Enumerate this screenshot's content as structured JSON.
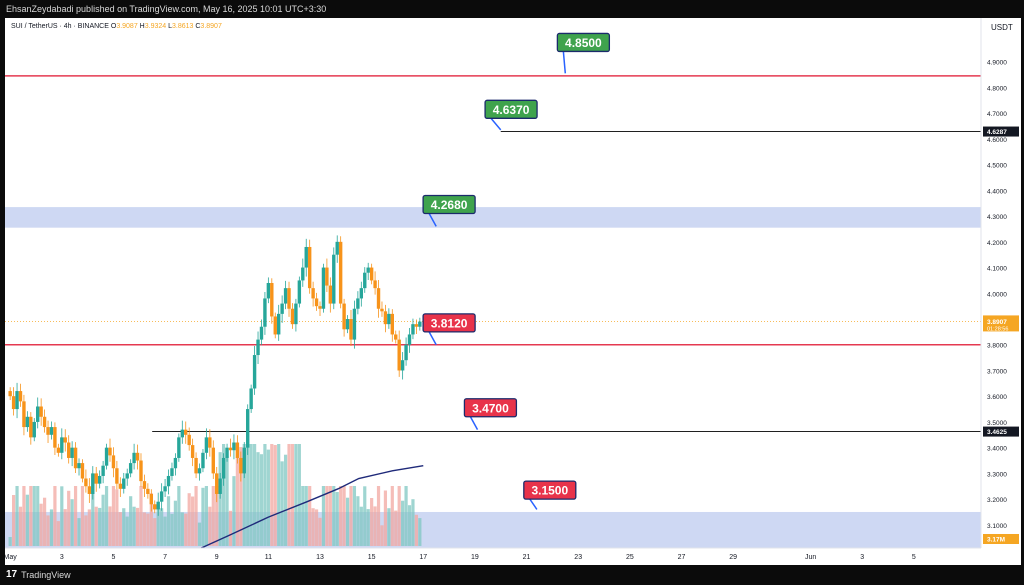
{
  "header": {
    "published_line": "EhsanZeydabadi published on TradingView.com, May 16, 2025 10:01 UTC+3:30"
  },
  "footer": {
    "logo_text": "TradingView",
    "logo_mark": "17"
  },
  "chart_data": {
    "type": "candlestick",
    "symbol_line": "SUI / TetherUS · 4h · BINANCE",
    "ohlc": {
      "o_label": "O",
      "o": "3.9087",
      "h_label": "H",
      "h": "3.9324",
      "l_label": "L",
      "l": "3.8613",
      "c_label": "C",
      "c": "3.8907"
    },
    "currency": "USDT",
    "ylim": [
      3.01,
      5.07
    ],
    "xlim": [
      -0.2,
      37.6
    ],
    "y_ticks": [
      "3.1000",
      "3.2000",
      "3.3000",
      "3.4000",
      "3.5000",
      "3.6000",
      "3.7000",
      "3.8000",
      "3.9000",
      "4.0000",
      "4.1000",
      "4.2000",
      "4.3000",
      "4.4000",
      "4.5000",
      "4.6000",
      "4.7000",
      "4.8000",
      "4.9000"
    ],
    "x_ticks": [
      {
        "day": 0,
        "label": "May"
      },
      {
        "day": 2,
        "label": "3"
      },
      {
        "day": 4,
        "label": "5"
      },
      {
        "day": 6,
        "label": "7"
      },
      {
        "day": 8,
        "label": "9"
      },
      {
        "day": 10,
        "label": "11"
      },
      {
        "day": 12,
        "label": "13"
      },
      {
        "day": 14,
        "label": "15"
      },
      {
        "day": 16,
        "label": "17"
      },
      {
        "day": 18,
        "label": "19"
      },
      {
        "day": 20,
        "label": "21"
      },
      {
        "day": 22,
        "label": "23"
      },
      {
        "day": 24,
        "label": "25"
      },
      {
        "day": 26,
        "label": "27"
      },
      {
        "day": 28,
        "label": "29"
      },
      {
        "day": 31,
        "label": "Jun"
      },
      {
        "day": 33,
        "label": "3"
      },
      {
        "day": 35,
        "label": "5"
      }
    ],
    "candle_closes": [
      3.6,
      3.55,
      3.62,
      3.58,
      3.48,
      3.52,
      3.44,
      3.5,
      3.56,
      3.52,
      3.48,
      3.45,
      3.48,
      3.4,
      3.38,
      3.44,
      3.42,
      3.36,
      3.4,
      3.32,
      3.34,
      3.28,
      3.25,
      3.22,
      3.3,
      3.26,
      3.29,
      3.33,
      3.4,
      3.37,
      3.32,
      3.26,
      3.24,
      3.28,
      3.3,
      3.34,
      3.38,
      3.35,
      3.27,
      3.24,
      3.22,
      3.18,
      3.16,
      3.19,
      3.23,
      3.25,
      3.29,
      3.32,
      3.36,
      3.44,
      3.47,
      3.45,
      3.41,
      3.36,
      3.3,
      3.32,
      3.38,
      3.44,
      3.4,
      3.3,
      3.22,
      3.28,
      3.36,
      3.4,
      3.39,
      3.42,
      3.36,
      3.3,
      3.4,
      3.55,
      3.63,
      3.76,
      3.82,
      3.87,
      3.98,
      4.04,
      3.91,
      3.84,
      3.92,
      3.96,
      4.02,
      3.94,
      3.88,
      3.96,
      4.05,
      4.1,
      4.18,
      4.02,
      3.98,
      3.95,
      3.94,
      4.1,
      4.03,
      3.96,
      4.15,
      4.2,
      3.96,
      3.86,
      3.9,
      3.82,
      3.94,
      3.98,
      4.02,
      4.08,
      4.1,
      4.05,
      4.02,
      3.94,
      3.93,
      3.88,
      3.92,
      3.84,
      3.82,
      3.7,
      3.74,
      3.8,
      3.84,
      3.88,
      3.87,
      3.89
    ],
    "volume_max": 1,
    "volume_label": "3.17M",
    "moving_average": [
      [
        7.4,
        3.01
      ],
      [
        8.5,
        3.06
      ],
      [
        10.0,
        3.13
      ],
      [
        11.5,
        3.19
      ],
      [
        12.7,
        3.24
      ],
      [
        13.5,
        3.28
      ],
      [
        14.8,
        3.31
      ],
      [
        16.0,
        3.33
      ]
    ],
    "zones": [
      {
        "name": "resistance-zone",
        "from": 4.255,
        "to": 4.335,
        "color": "#c9d4f2"
      },
      {
        "name": "support-zone",
        "from": 3.01,
        "to": 3.15,
        "color": "#c9d4f2"
      }
    ],
    "horizontal_lines": [
      {
        "name": "red-line-4.85",
        "y": 4.845,
        "color": "#e53950",
        "width": 1.5
      },
      {
        "name": "red-line-3.81",
        "y": 3.8,
        "color": "#e53950",
        "width": 1.5
      },
      {
        "name": "black-line-4.63",
        "y": 4.6287,
        "x_from": 19.0,
        "color": "#000000",
        "width": 0.8
      },
      {
        "name": "black-line-3.46",
        "y": 3.4625,
        "x_from": 5.5,
        "color": "#000000",
        "width": 0.8
      }
    ],
    "price_tags": [
      {
        "text": "4.6287",
        "y": 4.6287,
        "bg": "#131722",
        "fg": "#ffffff"
      },
      {
        "text": "3.8907",
        "sub": "01:28:56",
        "y": 3.8907,
        "bg": "#f5a623",
        "fg": "#ffffff"
      },
      {
        "text": "3.4625",
        "y": 3.4625,
        "bg": "#131722",
        "fg": "#ffffff"
      },
      {
        "text": "3.17M",
        "y": 3.045,
        "bg": "#f5a623",
        "fg": "#ffffff"
      }
    ],
    "current_price_line": 3.8907,
    "callouts": [
      {
        "text": "4.8500",
        "color": "green",
        "bx": 22.2,
        "by": 4.975,
        "ax": 21.5,
        "ay": 4.855
      },
      {
        "text": "4.6370",
        "color": "green",
        "bx": 19.4,
        "by": 4.715,
        "ax": 19.0,
        "ay": 4.635
      },
      {
        "text": "4.2680",
        "color": "green",
        "bx": 17.0,
        "by": 4.345,
        "ax": 16.5,
        "ay": 4.26
      },
      {
        "text": "3.8120",
        "color": "red",
        "bx": 17.0,
        "by": 3.885,
        "ax": 16.5,
        "ay": 3.8
      },
      {
        "text": "3.4700",
        "color": "red",
        "bx": 18.6,
        "by": 3.555,
        "ax": 18.1,
        "ay": 3.47
      },
      {
        "text": "3.1500",
        "color": "red",
        "bx": 20.9,
        "by": 3.235,
        "ax": 20.4,
        "ay": 3.16
      }
    ]
  }
}
